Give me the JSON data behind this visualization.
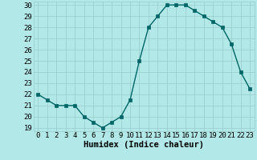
{
  "x": [
    0,
    1,
    2,
    3,
    4,
    5,
    6,
    7,
    8,
    9,
    10,
    11,
    12,
    13,
    14,
    15,
    16,
    17,
    18,
    19,
    20,
    21,
    22,
    23
  ],
  "y": [
    22,
    21.5,
    21,
    21,
    21,
    20,
    19.5,
    19,
    19.5,
    20,
    21.5,
    25,
    28,
    29,
    30,
    30,
    30,
    29.5,
    29,
    28.5,
    28,
    26.5,
    24,
    22.5
  ],
  "line_color": "#006666",
  "marker": "s",
  "marker_size": 2.5,
  "bg_color": "#b2e8e8",
  "grid_color": "#99cccc",
  "xlabel": "Humidex (Indice chaleur)",
  "xlabel_fontsize": 7.5,
  "ylim_min": 19,
  "ylim_max": 30,
  "yticks": [
    19,
    20,
    21,
    22,
    23,
    24,
    25,
    26,
    27,
    28,
    29,
    30
  ],
  "xticks": [
    0,
    1,
    2,
    3,
    4,
    5,
    6,
    7,
    8,
    9,
    10,
    11,
    12,
    13,
    14,
    15,
    16,
    17,
    18,
    19,
    20,
    21,
    22,
    23
  ],
  "tick_fontsize": 6.5,
  "linewidth": 1.0
}
